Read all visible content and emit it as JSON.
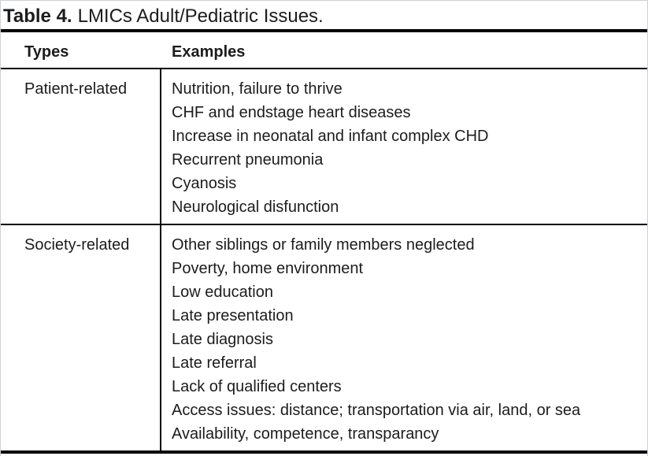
{
  "page": {
    "background": "#ffffff",
    "text_color": "#1c1c1c",
    "rule_color": "#000000",
    "edge_color": "#ccd1d9"
  },
  "table": {
    "caption_label": "Table 4.",
    "caption_text": "LMICs Adult/Pediatric Issues.",
    "columns": [
      "Types",
      "Examples"
    ],
    "rows": [
      {
        "type": "Patient-related",
        "examples": [
          "Nutrition, failure to thrive",
          "CHF and endstage heart diseases",
          "Increase in neonatal and infant complex CHD",
          "Recurrent pneumonia",
          "Cyanosis",
          "Neurological disfunction"
        ]
      },
      {
        "type": "Society-related",
        "examples": [
          "Other siblings or family members neglected",
          "Poverty, home environment",
          "Low education",
          "Late presentation",
          "Late diagnosis",
          "Late referral",
          "Lack of qualified centers",
          "Access issues: distance; transportation via air, land, or sea",
          "Availability, competence, transparancy"
        ]
      }
    ]
  }
}
